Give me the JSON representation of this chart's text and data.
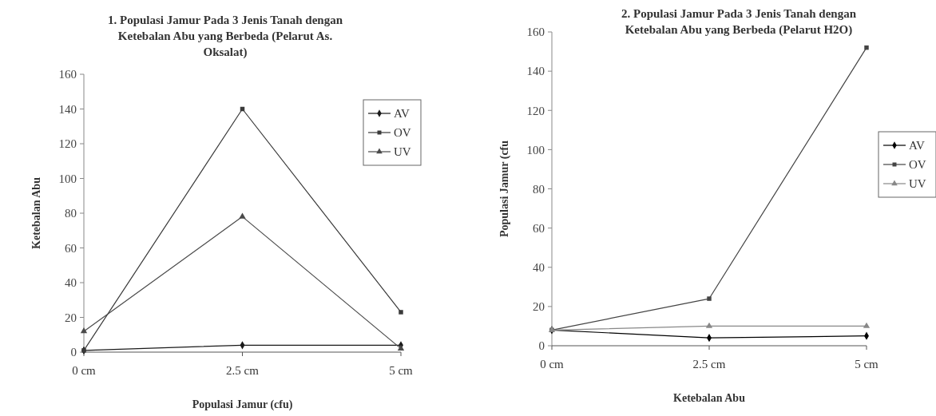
{
  "chart_data": [
    {
      "type": "line",
      "title": "1. Populasi Jamur Pada 3 Jenis Tanah dengan Ketebalan Abu yang Berbeda (Pelarut As. Oksalat)",
      "xlabel": "Populasi Jamur (cfu)",
      "ylabel": "Ketebalan Abu",
      "categories": [
        "0 cm",
        "2.5 cm",
        "5 cm"
      ],
      "ylim": [
        0,
        160
      ],
      "yticks": [
        0,
        20,
        40,
        60,
        80,
        100,
        120,
        140,
        160
      ],
      "legend": "top right",
      "grid": false,
      "series": [
        {
          "name": "AV",
          "color": "#1a1a1a",
          "marker": "diamond",
          "values": [
            1,
            4,
            4
          ]
        },
        {
          "name": "OV",
          "color": "#3a3a3a",
          "marker": "square",
          "values": [
            1,
            140,
            23
          ]
        },
        {
          "name": "UV",
          "color": "#4a4a4a",
          "marker": "triangle",
          "values": [
            12,
            78,
            2
          ]
        }
      ]
    },
    {
      "type": "line",
      "title": "2. Populasi Jamur Pada 3 Jenis Tanah dengan Ketebalan Abu yang Berbeda (Pelarut H2O)",
      "xlabel": "Ketebalan Abu",
      "ylabel": "Populasi Jamur (cfu",
      "categories": [
        "0 cm",
        "2.5 cm",
        "5 cm"
      ],
      "ylim": [
        0,
        160
      ],
      "yticks": [
        0,
        20,
        40,
        60,
        80,
        100,
        120,
        140,
        160
      ],
      "legend": "right",
      "grid": false,
      "series": [
        {
          "name": "AV",
          "color": "#000000",
          "marker": "diamond",
          "values": [
            8,
            4,
            5
          ]
        },
        {
          "name": "OV",
          "color": "#444444",
          "marker": "square",
          "values": [
            8,
            24,
            152
          ]
        },
        {
          "name": "UV",
          "color": "#888888",
          "marker": "triangle",
          "values": [
            8,
            10,
            10
          ]
        }
      ]
    }
  ]
}
